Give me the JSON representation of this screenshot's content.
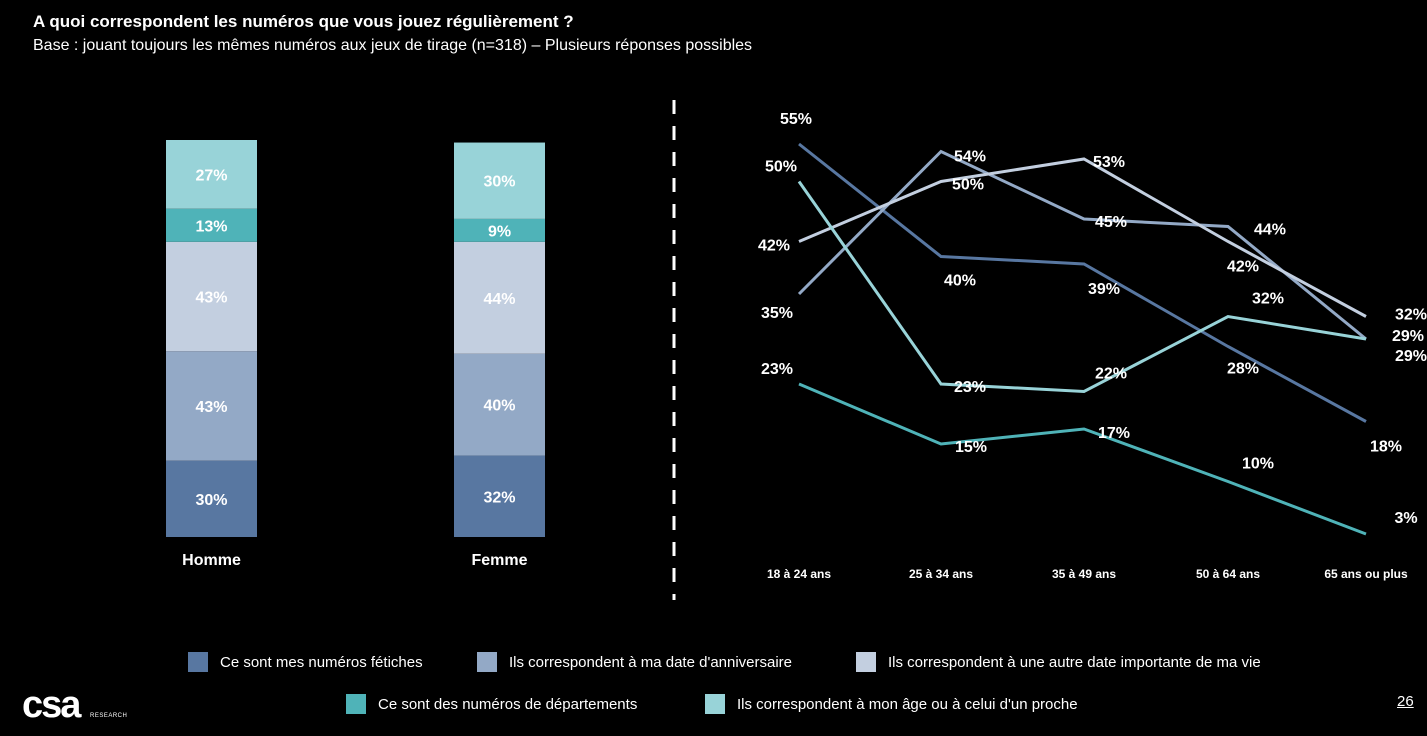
{
  "title": "A quoi correspondent les numéros que vous jouez régulièrement ?",
  "subtitle": "Base : jouant toujours les mêmes numéros aux jeux de tirage (n=318) – Plusieurs réponses possibles",
  "chart_data": [
    {
      "type": "bar",
      "stacked": true,
      "categories": [
        "Homme",
        "Femme"
      ],
      "series": [
        {
          "name": "Ce sont mes numéros fétiches",
          "color": "#5877a1",
          "values": [
            30,
            32
          ],
          "labels": [
            "30%",
            "32%"
          ]
        },
        {
          "name": "Ils correspondent à ma date d'anniversaire",
          "color": "#93a9c6",
          "values": [
            43,
            40
          ],
          "labels": [
            "43%",
            "40%"
          ]
        },
        {
          "name": "Ils correspondent à une autre date importante de ma vie",
          "color": "#c3cfe0",
          "values": [
            43,
            44
          ],
          "labels": [
            "43%",
            "44%"
          ]
        },
        {
          "name": "Ce sont des numéros de départements",
          "color": "#4fb3b8",
          "values": [
            13,
            9
          ],
          "labels": [
            "13%",
            "9%"
          ]
        },
        {
          "name": "Ils correspondent à mon âge ou à celui d'un proche",
          "color": "#98d3d8",
          "values": [
            27,
            30
          ],
          "labels": [
            "27%",
            "30%"
          ]
        }
      ]
    },
    {
      "type": "line",
      "categories": [
        "18 à 24 ans",
        "25 à 34 ans",
        "35 à 49 ans",
        "50 à 64 ans",
        "65 ans ou plus"
      ],
      "series": [
        {
          "name": "Ce sont mes numéros fétiches",
          "color": "#5877a1",
          "values": [
            55,
            40,
            39,
            28,
            18
          ],
          "labels": [
            "55%",
            "40%",
            "39%",
            "28%",
            "18%"
          ]
        },
        {
          "name": "Ils correspondent à ma date d'anniversaire",
          "color": "#93a9c6",
          "values": [
            35,
            54,
            45,
            44,
            29
          ],
          "labels": [
            "35%",
            "54%",
            "45%",
            "44%",
            "29%"
          ]
        },
        {
          "name": "Ils correspondent à une autre date importante de ma vie",
          "color": "#c3cfe0",
          "values": [
            42,
            50,
            53,
            42,
            32
          ],
          "labels": [
            "42%",
            "50%",
            "53%",
            "42%",
            "32%"
          ]
        },
        {
          "name": "Ce sont des numéros de départements",
          "color": "#4fb3b8",
          "values": [
            23,
            15,
            17,
            10,
            3
          ],
          "labels": [
            "23%",
            "15%",
            "17%",
            "10%",
            "3%"
          ]
        },
        {
          "name": "Ils correspondent à mon âge ou à celui d'un proche",
          "color": "#98d3d8",
          "values": [
            50,
            23,
            22,
            32,
            29
          ],
          "labels": [
            "50%",
            "23%",
            "22%",
            "32%",
            "29%"
          ]
        }
      ]
    }
  ],
  "legend": [
    {
      "label": "Ce sont mes numéros fétiches",
      "color": "#5877a1"
    },
    {
      "label": "Ils correspondent à ma date d'anniversaire",
      "color": "#93a9c6"
    },
    {
      "label": "Ils correspondent à une autre date importante de ma vie",
      "color": "#c3cfe0"
    },
    {
      "label": "Ce sont des numéros de départements",
      "color": "#4fb3b8"
    },
    {
      "label": "Ils correspondent à mon âge ou à celui d'un proche",
      "color": "#98d3d8"
    }
  ],
  "logo": {
    "text": "csa",
    "subtext": "RESEARCH"
  },
  "page_number": "26"
}
